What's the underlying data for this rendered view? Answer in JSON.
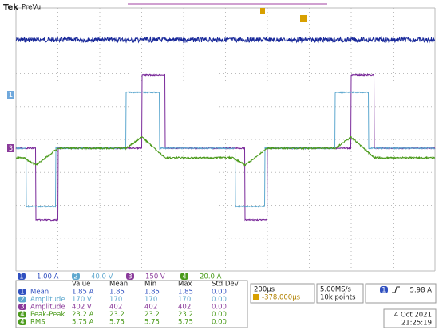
{
  "header": {
    "brand": "Tek",
    "mode": "PreVu"
  },
  "markers": {
    "ch1": "1",
    "ch3": "3"
  },
  "channels": [
    {
      "number": "1",
      "scale": "1.00 A"
    },
    {
      "number": "2",
      "scale": "40.0 V"
    },
    {
      "number": "3",
      "scale": "150 V"
    },
    {
      "number": "4",
      "scale": "20.0 A"
    }
  ],
  "measurements": {
    "columns": [
      "Value",
      "Mean",
      "Min",
      "Max",
      "Std Dev"
    ],
    "rows": [
      [
        "1",
        "Mean",
        "1.85 A",
        "1.85",
        "1.85",
        "1.85",
        "0.00"
      ],
      [
        "2",
        "Amplitude",
        "170 V",
        "170",
        "170",
        "170",
        "0.00"
      ],
      [
        "3",
        "Amplitude",
        "402 V",
        "402",
        "402",
        "402",
        "0.00"
      ],
      [
        "4",
        "Peak-Peak",
        "23.2 A",
        "23.2",
        "23.2",
        "23.2",
        "0.00"
      ],
      [
        "4",
        "RMS",
        "5.75 A",
        "5.75",
        "5.75",
        "5.75",
        "0.00"
      ]
    ]
  },
  "timebase": {
    "scale": "200µs",
    "position": "-378.000µs"
  },
  "acquisition": {
    "rate": "5.00MS/s",
    "points": "10k points"
  },
  "trigger": {
    "source": "1",
    "level": "5.98 A"
  },
  "datetime": {
    "date": "4 Oct  2021",
    "time": "21:25:19"
  }
}
